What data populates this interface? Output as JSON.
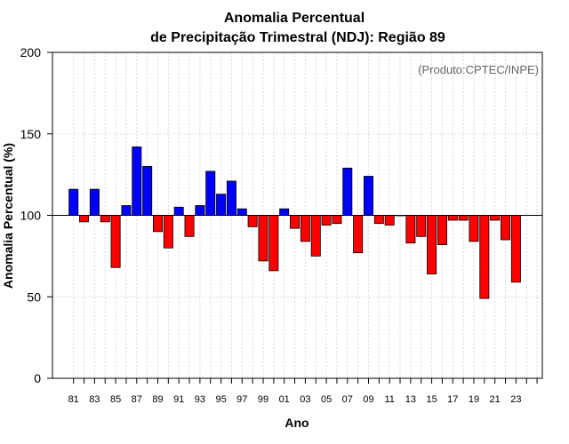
{
  "chart_data": {
    "type": "bar",
    "title_line1": "Anomalia Percentual",
    "title_line2": "de Precipitação Trimestral (NDJ): Região 89",
    "xlabel": "Ano",
    "ylabel": "Anomalia Percentual (%)",
    "credit": "(Produto:CPTEC/INPE)",
    "baseline": 100,
    "ylim": [
      0,
      200
    ],
    "yticks": [
      0,
      50,
      100,
      150,
      200
    ],
    "xlim": [
      1979,
      2025.5
    ],
    "years": [
      1981,
      1982,
      1983,
      1984,
      1985,
      1986,
      1987,
      1988,
      1989,
      1990,
      1991,
      1992,
      1993,
      1994,
      1995,
      1996,
      1997,
      1998,
      1999,
      2000,
      2001,
      2002,
      2003,
      2004,
      2005,
      2006,
      2007,
      2008,
      2009,
      2010,
      2011,
      2012,
      2013,
      2014,
      2015,
      2016,
      2017,
      2018,
      2019,
      2020,
      2021,
      2022,
      2023
    ],
    "values": [
      116,
      96,
      116,
      96,
      68,
      106,
      142,
      130,
      90,
      80,
      105,
      87,
      106,
      127,
      113,
      121,
      104,
      93,
      72,
      66,
      104,
      92,
      84,
      75,
      94,
      95,
      129,
      77,
      124,
      95,
      94,
      100,
      83,
      87,
      64,
      82,
      97,
      97,
      84,
      49,
      97,
      85,
      59
    ],
    "xtick_years": [
      1981,
      1983,
      1985,
      1987,
      1989,
      1991,
      1993,
      1995,
      1997,
      1999,
      2001,
      2003,
      2005,
      2007,
      2009,
      2011,
      2013,
      2015,
      2017,
      2019,
      2021,
      2023
    ],
    "xtick_labels": [
      "81",
      "83",
      "85",
      "87",
      "89",
      "91",
      "93",
      "95",
      "97",
      "99",
      "01",
      "03",
      "05",
      "07",
      "09",
      "11",
      "13",
      "15",
      "17",
      "19",
      "21",
      "23"
    ],
    "minor_tick_years": [
      1982,
      1984,
      1986,
      1988,
      1990,
      1992,
      1994,
      1996,
      1998,
      2000,
      2002,
      2004,
      2006,
      2008,
      2010,
      2012,
      2014,
      2016,
      2018,
      2020,
      2022,
      2024,
      2025
    ],
    "colors": {
      "above": "#0000ff",
      "below": "#ff0000",
      "grid": "#d9d9d9",
      "bar_edge": "#000000"
    }
  }
}
